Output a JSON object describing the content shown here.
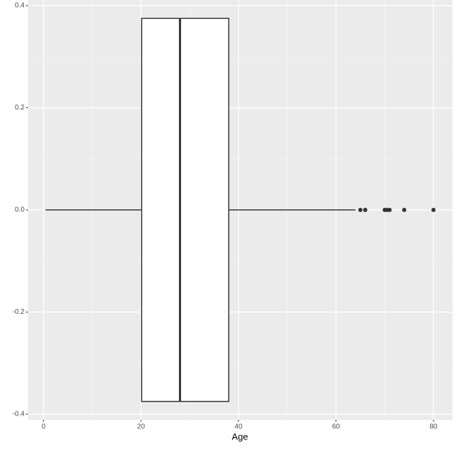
{
  "chart_data": {
    "type": "boxplot",
    "orientation": "horizontal",
    "x_label": "Age",
    "box": {
      "whisker_low": 0.42,
      "q1": 20.125,
      "median": 28,
      "q3": 38,
      "whisker_high": 64,
      "outliers": [
        65,
        66,
        70,
        70.5,
        71,
        74,
        80
      ],
      "ymin": -0.375,
      "ymax": 0.375,
      "fill": "#ffffff",
      "line_color": "#333333"
    },
    "xlim": [
      -3.17,
      83.9
    ],
    "xticks": [
      0,
      20,
      40,
      60,
      80
    ],
    "ylim": [
      -0.411,
      0.411
    ],
    "yticks": [
      -0.4,
      -0.2,
      {
        "value": 0,
        "label": "0.0"
      },
      0.2,
      0.4
    ],
    "x_minor_grid": [
      10,
      30,
      50,
      70
    ],
    "y_minor_grid": [
      -0.3,
      -0.1,
      0.1,
      0.3
    ],
    "grid": true,
    "panel_color": "#ebebeb"
  }
}
